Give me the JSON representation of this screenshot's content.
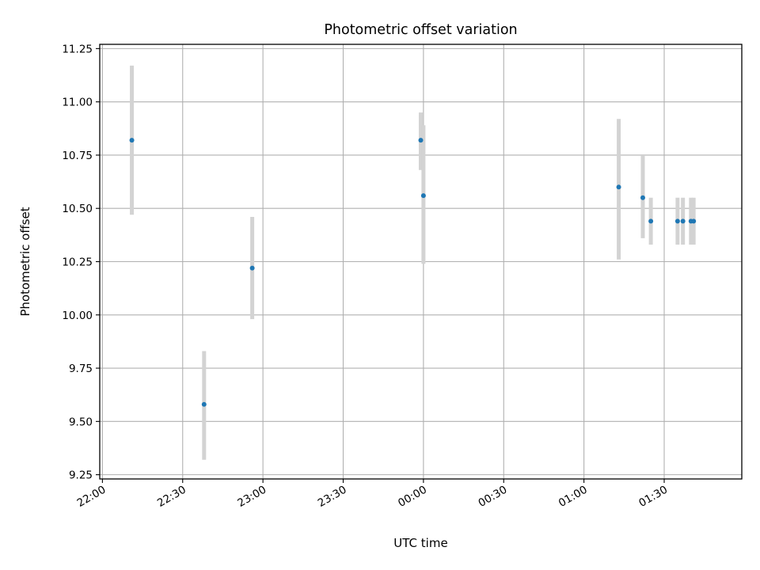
{
  "chart_data": {
    "type": "scatter",
    "title": "Photometric offset variation",
    "xlabel": "UTC time",
    "ylabel": "Photometric offset",
    "x_axis_kind": "time",
    "xlim": [
      "21:59",
      "01:59"
    ],
    "ylim": [
      9.23,
      11.27
    ],
    "xticks": [
      "22:00",
      "22:30",
      "23:00",
      "23:30",
      "00:00",
      "00:30",
      "01:00",
      "01:30"
    ],
    "yticks": [
      "9.25",
      "9.50",
      "9.75",
      "10.00",
      "10.25",
      "10.50",
      "10.75",
      "11.00",
      "11.25"
    ],
    "grid": true,
    "point_color": "#1f77b4",
    "errorbar_color": "#d3d3d3",
    "points": [
      {
        "x": "22:11",
        "y": 10.82,
        "yerr_low": 10.47,
        "yerr_high": 11.17
      },
      {
        "x": "22:38",
        "y": 9.58,
        "yerr_low": 9.32,
        "yerr_high": 9.83
      },
      {
        "x": "22:56",
        "y": 10.22,
        "yerr_low": 9.98,
        "yerr_high": 10.46
      },
      {
        "x": "23:59",
        "y": 10.82,
        "yerr_low": 10.68,
        "yerr_high": 10.95
      },
      {
        "x": "00:00",
        "y": 10.56,
        "yerr_low": 10.24,
        "yerr_high": 10.89
      },
      {
        "x": "01:13",
        "y": 10.6,
        "yerr_low": 10.26,
        "yerr_high": 10.92
      },
      {
        "x": "01:22",
        "y": 10.55,
        "yerr_low": 10.36,
        "yerr_high": 10.75
      },
      {
        "x": "01:25",
        "y": 10.44,
        "yerr_low": 10.33,
        "yerr_high": 10.55
      },
      {
        "x": "01:35",
        "y": 10.44,
        "yerr_low": 10.33,
        "yerr_high": 10.55
      },
      {
        "x": "01:37",
        "y": 10.44,
        "yerr_low": 10.33,
        "yerr_high": 10.55
      },
      {
        "x": "01:40",
        "y": 10.44,
        "yerr_low": 10.33,
        "yerr_high": 10.55
      },
      {
        "x": "01:41",
        "y": 10.44,
        "yerr_low": 10.33,
        "yerr_high": 10.55
      }
    ]
  }
}
